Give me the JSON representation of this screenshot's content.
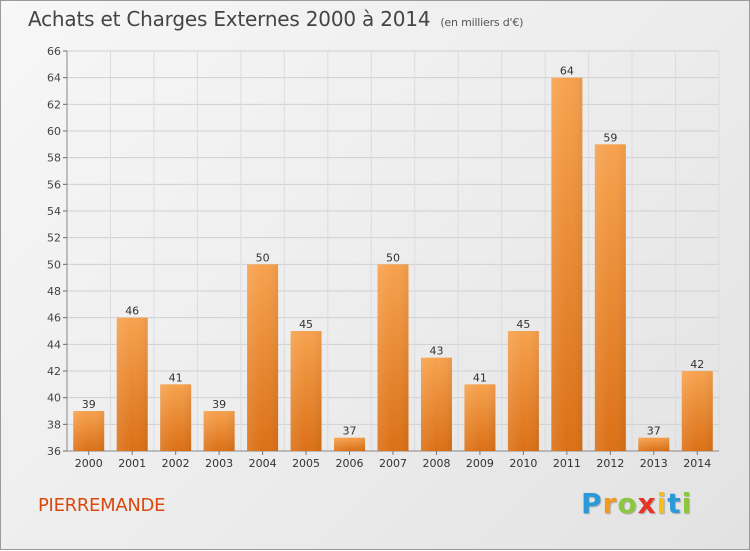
{
  "title": "Achats et Charges Externes 2000 à 2014",
  "subtitle": "(en milliers d'€)",
  "place": "PIERREMANDE",
  "logo": {
    "letters": [
      "P",
      "r",
      "o",
      "x",
      "i",
      "t",
      "i"
    ],
    "colors": [
      "#2a9ad8",
      "#f29a1e",
      "#8dc63f",
      "#e8332a",
      "#f2c01e",
      "#2a9ad8",
      "#8dc63f"
    ]
  },
  "chart_data": {
    "type": "bar",
    "title": "Achats et Charges Externes 2000 à 2014",
    "subtitle": "(en milliers d'€)",
    "categories": [
      "2000",
      "2001",
      "2002",
      "2003",
      "2004",
      "2005",
      "2006",
      "2007",
      "2008",
      "2009",
      "2010",
      "2011",
      "2012",
      "2013",
      "2014"
    ],
    "values": [
      39,
      46,
      41,
      39,
      50,
      45,
      37,
      50,
      43,
      41,
      45,
      64,
      59,
      37,
      42
    ],
    "ylim": [
      36,
      66
    ],
    "yticks": [
      36,
      38,
      40,
      42,
      44,
      46,
      48,
      50,
      52,
      54,
      56,
      58,
      60,
      62,
      64,
      66
    ],
    "grid": true,
    "bar_color": "#f08a26",
    "xlabel": "",
    "ylabel": ""
  }
}
